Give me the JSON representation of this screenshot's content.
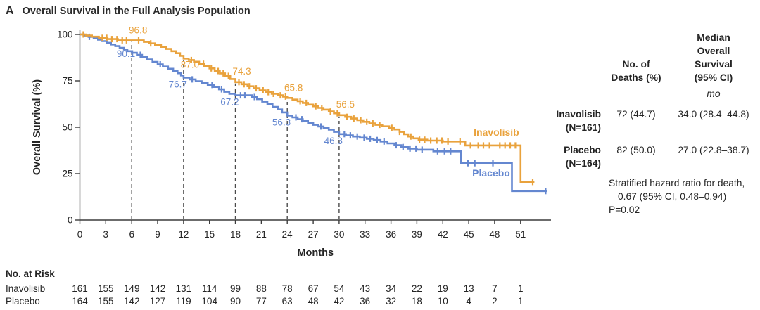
{
  "figure": {
    "panel_label": "A",
    "title": "Overall Survival in the Full Analysis Population"
  },
  "chart_data": {
    "type": "line",
    "subtype": "kaplan-meier-step-curves",
    "title": "Overall Survival in the Full Analysis Population",
    "xlabel": "Months",
    "ylabel": "Overall Survival (%)",
    "xlim": [
      0,
      54
    ],
    "ylim": [
      0,
      100
    ],
    "x_ticks": [
      0,
      3,
      6,
      9,
      12,
      15,
      18,
      21,
      24,
      27,
      30,
      33,
      36,
      39,
      42,
      45,
      48,
      51
    ],
    "y_ticks": [
      0,
      25,
      50,
      75,
      100
    ],
    "grid": false,
    "colors": {
      "inavolisib": "#E9A23C",
      "placebo": "#6487D0",
      "axis": "#3c3c3c",
      "dashed": "#4a4a4a"
    },
    "series": [
      {
        "name": "Placebo",
        "color_key": "placebo",
        "steps": [
          [
            0,
            100
          ],
          [
            0.5,
            99.4
          ],
          [
            1,
            98.7
          ],
          [
            1.6,
            98
          ],
          [
            2.1,
            97.2
          ],
          [
            2.6,
            96.4
          ],
          [
            3.1,
            95.5
          ],
          [
            3.6,
            94.6
          ],
          [
            4.1,
            93.7
          ],
          [
            4.6,
            92.8
          ],
          [
            5.1,
            91.9
          ],
          [
            5.5,
            91.0
          ],
          [
            6,
            90.1
          ],
          [
            6.6,
            89.0
          ],
          [
            7.2,
            87.8
          ],
          [
            7.8,
            86.5
          ],
          [
            8.4,
            85.2
          ],
          [
            9,
            83.9
          ],
          [
            9.6,
            82.7
          ],
          [
            10.2,
            81.5
          ],
          [
            10.8,
            80.3
          ],
          [
            11.3,
            79.1
          ],
          [
            11.7,
            77.9
          ],
          [
            12,
            76.7
          ],
          [
            12.7,
            75.8
          ],
          [
            13.4,
            74.8
          ],
          [
            14.1,
            73.8
          ],
          [
            14.8,
            72.8
          ],
          [
            15.5,
            71.7
          ],
          [
            16.1,
            70.4
          ],
          [
            16.7,
            69.1
          ],
          [
            17.3,
            68.0
          ],
          [
            18,
            67.2
          ],
          [
            19.4,
            67.2
          ],
          [
            19.9,
            66.3
          ],
          [
            20.5,
            65.1
          ],
          [
            21.1,
            63.8
          ],
          [
            21.7,
            62.4
          ],
          [
            22.3,
            61.0
          ],
          [
            22.9,
            59.6
          ],
          [
            23.4,
            58.0
          ],
          [
            24,
            56.3
          ],
          [
            24.6,
            55.3
          ],
          [
            25.2,
            54.3
          ],
          [
            25.8,
            53.3
          ],
          [
            26.4,
            52.3
          ],
          [
            27,
            51.3
          ],
          [
            27.6,
            50.4
          ],
          [
            28.2,
            49.6
          ],
          [
            28.8,
            48.7
          ],
          [
            29.4,
            47.5
          ],
          [
            30,
            46.3
          ],
          [
            30.8,
            45.6
          ],
          [
            31.6,
            45.0
          ],
          [
            32.4,
            44.4
          ],
          [
            33.2,
            43.8
          ],
          [
            34,
            43.1
          ],
          [
            34.8,
            42.3
          ],
          [
            35.6,
            41.3
          ],
          [
            36.4,
            40.3
          ],
          [
            37.2,
            39.3
          ],
          [
            38,
            38.5
          ],
          [
            39,
            37.9
          ],
          [
            40.9,
            37.0
          ],
          [
            44.1,
            37.0
          ],
          [
            44.1,
            30.6
          ],
          [
            50.0,
            30.6
          ],
          [
            50.0,
            15.6
          ],
          [
            54.1,
            15.6
          ]
        ],
        "censor_months": [
          1.1,
          7.0,
          9.3,
          13.0,
          15.3,
          16.4,
          18.6,
          19.1,
          20.2,
          25.0,
          25.7,
          27.9,
          30.6,
          31.3,
          32.1,
          32.9,
          33.6,
          34.4,
          35.2,
          36.6,
          37.4,
          38.2,
          38.9,
          39.6,
          41.4,
          42.2,
          42.9,
          44.9,
          45.7,
          47.8,
          53.9
        ],
        "curve_label": {
          "text": "Placebo",
          "month": 47.6,
          "pct": 23.5
        }
      },
      {
        "name": "Inavolisib",
        "color_key": "inavolisib",
        "steps": [
          [
            0,
            100
          ],
          [
            0.7,
            99.4
          ],
          [
            1.4,
            98.8
          ],
          [
            2.2,
            98.2
          ],
          [
            3.2,
            97.5
          ],
          [
            4.4,
            96.8
          ],
          [
            7.0,
            96.8
          ],
          [
            7.4,
            96.0
          ],
          [
            8.0,
            95.2
          ],
          [
            8.7,
            94.3
          ],
          [
            9.4,
            93.3
          ],
          [
            10.0,
            92.2
          ],
          [
            10.6,
            91.0
          ],
          [
            11.1,
            89.9
          ],
          [
            11.6,
            88.5
          ],
          [
            12,
            87.0
          ],
          [
            12.6,
            86.2
          ],
          [
            13.2,
            85.3
          ],
          [
            13.8,
            84.2
          ],
          [
            14.4,
            83.0
          ],
          [
            15,
            81.7
          ],
          [
            15.6,
            80.3
          ],
          [
            16.2,
            79.0
          ],
          [
            16.8,
            77.7
          ],
          [
            17.4,
            76.0
          ],
          [
            18,
            74.3
          ],
          [
            18.7,
            73.2
          ],
          [
            19.4,
            72.1
          ],
          [
            20.1,
            71.0
          ],
          [
            20.8,
            69.9
          ],
          [
            21.5,
            68.9
          ],
          [
            22.2,
            68.0
          ],
          [
            22.9,
            67.2
          ],
          [
            23.5,
            66.5
          ],
          [
            24,
            65.8
          ],
          [
            24.6,
            64.9
          ],
          [
            25.2,
            64.0
          ],
          [
            25.8,
            63.1
          ],
          [
            26.4,
            62.2
          ],
          [
            27,
            61.3
          ],
          [
            27.6,
            60.4
          ],
          [
            28.2,
            59.5
          ],
          [
            28.8,
            58.5
          ],
          [
            29.4,
            57.5
          ],
          [
            30,
            56.5
          ],
          [
            30.7,
            55.6
          ],
          [
            31.4,
            54.7
          ],
          [
            32.1,
            53.8
          ],
          [
            32.8,
            52.9
          ],
          [
            33.5,
            52.1
          ],
          [
            34.2,
            51.3
          ],
          [
            35,
            50.5
          ],
          [
            35.8,
            49.7
          ],
          [
            36.4,
            48.8
          ],
          [
            37,
            47.5
          ],
          [
            37.5,
            46.2
          ],
          [
            38,
            45.0
          ],
          [
            38.6,
            44.0
          ],
          [
            39.2,
            43.3
          ],
          [
            40.2,
            42.8
          ],
          [
            42,
            42.3
          ],
          [
            44.6,
            40.2
          ],
          [
            51.0,
            40.2
          ],
          [
            51.0,
            20.5
          ],
          [
            52.6,
            20.5
          ]
        ],
        "censor_months": [
          0.4,
          2.6,
          3.1,
          3.7,
          4.3,
          4.9,
          5.4,
          6.8,
          8.2,
          12.9,
          14.3,
          15.2,
          16.0,
          16.6,
          17.2,
          18.4,
          19.0,
          19.6,
          20.4,
          21.2,
          21.8,
          22.4,
          23.2,
          23.8,
          25.5,
          26.2,
          27.3,
          28.0,
          29.0,
          29.8,
          30.9,
          31.7,
          32.5,
          33.2,
          33.9,
          34.7,
          36.1,
          37.0,
          38.3,
          39.3,
          39.9,
          40.6,
          41.3,
          41.9,
          42.6,
          44.0,
          45.2,
          46.1,
          46.7,
          47.4,
          48.6,
          49.2,
          49.8,
          50.4,
          52.4
        ],
        "curve_label": {
          "text": "Inavolisib",
          "month": 48.2,
          "pct": 45.5
        }
      }
    ],
    "landmark_annotations": {
      "months": [
        6,
        12,
        18,
        24,
        30
      ],
      "inavolisib_labels": [
        "96.8",
        "87.0",
        "74.3",
        "65.8",
        "56.5"
      ],
      "inavolisib_values": [
        96.8,
        87.0,
        74.3,
        65.8,
        56.5
      ],
      "placebo_labels": [
        "90.1",
        "76.7",
        "67.2",
        "56.3",
        "46.3"
      ],
      "placebo_values": [
        90.1,
        76.7,
        67.2,
        56.3,
        46.3
      ]
    }
  },
  "side_table": {
    "col_deaths_header": "No. of\nDeaths (%)",
    "col_median_header": "Median\nOverall\nSurvival\n(95% CI)",
    "unit": "mo",
    "rows": [
      {
        "name": "Inavolisib",
        "n": "(N=161)",
        "deaths": "72 (44.7)",
        "median": "34.0 (28.4–44.8)"
      },
      {
        "name": "Placebo",
        "n": "(N=164)",
        "deaths": "82 (50.0)",
        "median": "27.0 (22.8–38.7)"
      }
    ],
    "note_line1": "Stratified hazard ratio for death,",
    "note_line2": "0.67 (95% CI, 0.48–0.94)",
    "note_line3": "P=0.02"
  },
  "risk_table": {
    "header": "No. at Risk",
    "months": [
      0,
      3,
      6,
      9,
      12,
      15,
      18,
      21,
      24,
      27,
      30,
      33,
      36,
      39,
      42,
      45,
      48,
      51
    ],
    "rows": [
      {
        "name": "Inavolisib",
        "values": [
          161,
          155,
          149,
          142,
          131,
          114,
          99,
          88,
          78,
          67,
          54,
          43,
          34,
          22,
          19,
          13,
          7,
          1
        ]
      },
      {
        "name": "Placebo",
        "values": [
          164,
          155,
          142,
          127,
          119,
          104,
          90,
          77,
          63,
          48,
          42,
          36,
          32,
          18,
          10,
          4,
          2,
          1
        ]
      }
    ]
  }
}
